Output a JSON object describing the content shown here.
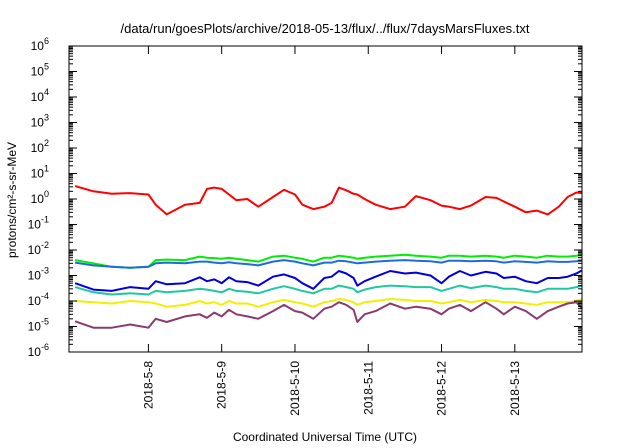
{
  "chart_data": {
    "type": "line",
    "title": "/data/run/goesPlots/archive/2018-05-13/flux/../flux/7daysMarsFluxes.txt",
    "xlabel": "Coordinated Universal Time (UTC)",
    "ylabel": "protons/cm²-s-sr-MeV",
    "yscale": "log",
    "ylim": [
      1e-06,
      1000000.0
    ],
    "xlim": [
      "2018-05-07 02:00",
      "2018-05-13 23:59"
    ],
    "x_ticks": [
      "2018-5-8",
      "2018-5-9",
      "2018-5-10",
      "2018-5-11",
      "2018-5-12",
      "2018-5-13"
    ],
    "y_ticks": [
      -6,
      -5,
      -4,
      -3,
      -2,
      -1,
      0,
      1,
      2,
      3,
      4,
      5,
      6
    ],
    "grid": false,
    "legend": "none",
    "x_days": [
      0.0,
      0.25,
      0.5,
      0.75,
      1.0,
      1.1,
      1.25,
      1.5,
      1.7,
      1.8,
      1.9,
      2.0,
      2.1,
      2.2,
      2.35,
      2.5,
      2.7,
      2.85,
      3.0,
      3.1,
      3.25,
      3.4,
      3.5,
      3.6,
      3.7,
      3.8,
      3.85,
      3.95,
      4.1,
      4.3,
      4.5,
      4.65,
      4.85,
      5.0,
      5.1,
      5.25,
      5.4,
      5.6,
      5.75,
      5.85,
      6.0,
      6.15,
      6.3,
      6.45,
      6.6,
      6.72,
      6.84,
      6.92
    ],
    "series": [
      {
        "color": "#ff0000",
        "values": [
          3.2,
          2.0,
          1.6,
          1.7,
          1.5,
          0.6,
          0.25,
          0.6,
          0.7,
          2.5,
          2.8,
          2.5,
          1.5,
          0.9,
          1.0,
          0.5,
          1.2,
          2.3,
          1.5,
          0.6,
          0.4,
          0.5,
          0.7,
          2.8,
          2.2,
          1.6,
          1.5,
          1.0,
          0.6,
          0.4,
          0.5,
          1.3,
          0.9,
          0.55,
          0.5,
          0.4,
          0.55,
          1.2,
          1.1,
          0.8,
          0.5,
          0.3,
          0.35,
          0.25,
          0.5,
          1.2,
          1.8,
          1.7
        ]
      },
      {
        "color": "#00ee00",
        "values": [
          0.004,
          0.003,
          0.0022,
          0.002,
          0.0022,
          0.004,
          0.0042,
          0.004,
          0.0055,
          0.005,
          0.0048,
          0.0045,
          0.005,
          0.0045,
          0.004,
          0.0035,
          0.0055,
          0.006,
          0.005,
          0.0045,
          0.0035,
          0.005,
          0.005,
          0.006,
          0.0055,
          0.005,
          0.0045,
          0.005,
          0.0055,
          0.006,
          0.0065,
          0.006,
          0.0055,
          0.005,
          0.006,
          0.006,
          0.0055,
          0.006,
          0.0055,
          0.005,
          0.006,
          0.0055,
          0.005,
          0.006,
          0.0055,
          0.0055,
          0.006,
          0.0065
        ]
      },
      {
        "color": "#1e6be0",
        "values": [
          0.0032,
          0.0025,
          0.0022,
          0.002,
          0.0022,
          0.003,
          0.0032,
          0.003,
          0.0035,
          0.0035,
          0.0032,
          0.003,
          0.0033,
          0.003,
          0.0028,
          0.0025,
          0.0035,
          0.004,
          0.0035,
          0.003,
          0.0025,
          0.0032,
          0.0032,
          0.0038,
          0.0036,
          0.0032,
          0.003,
          0.0032,
          0.0035,
          0.0038,
          0.004,
          0.0038,
          0.0036,
          0.0032,
          0.0038,
          0.0038,
          0.0036,
          0.0038,
          0.0036,
          0.0032,
          0.0036,
          0.0034,
          0.0032,
          0.0036,
          0.0034,
          0.0034,
          0.0036,
          0.0038
        ]
      },
      {
        "color": "#0000dd",
        "values": [
          0.0005,
          0.00028,
          0.00025,
          0.00035,
          0.0003,
          0.0006,
          0.00045,
          0.0005,
          0.00085,
          0.0006,
          0.0007,
          0.0005,
          0.00085,
          0.0006,
          0.00055,
          0.0004,
          0.0009,
          0.0011,
          0.0008,
          0.0005,
          0.0003,
          0.0008,
          0.0009,
          0.0015,
          0.0012,
          0.0008,
          0.0004,
          0.0006,
          0.0009,
          0.0015,
          0.0012,
          0.0013,
          0.001,
          0.0005,
          0.0009,
          0.0015,
          0.001,
          0.0014,
          0.0012,
          0.0008,
          0.0009,
          0.0006,
          0.0005,
          0.0008,
          0.0008,
          0.0009,
          0.0012,
          0.0016
        ]
      },
      {
        "color": "#20c8a0",
        "values": [
          0.00035,
          0.00022,
          0.00018,
          0.0002,
          0.00018,
          0.00025,
          0.00022,
          0.00025,
          0.0003,
          0.00028,
          0.00025,
          0.00022,
          0.0003,
          0.00025,
          0.00023,
          0.0002,
          0.0003,
          0.00038,
          0.0003,
          0.00025,
          0.0002,
          0.0003,
          0.0003,
          0.0004,
          0.00035,
          0.0003,
          0.00022,
          0.00028,
          0.00035,
          0.0004,
          0.00038,
          0.00035,
          0.00035,
          0.00025,
          0.0003,
          0.0004,
          0.00032,
          0.0004,
          0.00035,
          0.0003,
          0.0003,
          0.00025,
          0.00022,
          0.0003,
          0.0003,
          0.0003,
          0.00035,
          0.0004
        ]
      },
      {
        "color": "#f0f000",
        "values": [
          0.0001,
          9e-05,
          8e-05,
          0.0001,
          9e-05,
          8e-05,
          6e-05,
          7e-05,
          0.0001,
          8e-05,
          9e-05,
          7e-05,
          0.0001,
          8e-05,
          8e-05,
          6e-05,
          9e-05,
          0.00011,
          9e-05,
          8e-05,
          6e-05,
          9e-05,
          0.0001,
          0.00012,
          0.00011,
          9e-05,
          7e-05,
          9e-05,
          0.0001,
          0.00012,
          0.00011,
          0.0001,
          0.0001,
          8e-05,
          9e-05,
          0.00011,
          9e-05,
          0.00011,
          0.0001,
          9e-05,
          9e-05,
          8e-05,
          7e-05,
          9e-05,
          9e-05,
          9e-05,
          0.0001,
          0.00012
        ]
      },
      {
        "color": "#8b3a6e",
        "values": [
          1.6e-05,
          9e-06,
          9e-06,
          1.2e-05,
          9e-06,
          2e-05,
          1.5e-05,
          2.5e-05,
          3e-05,
          2.2e-05,
          3.5e-05,
          2.5e-05,
          4.5e-05,
          3e-05,
          2.5e-05,
          2e-05,
          4e-05,
          7e-05,
          4e-05,
          3.5e-05,
          2e-05,
          5e-05,
          6e-05,
          9e-05,
          7e-05,
          4.5e-05,
          1.5e-05,
          3e-05,
          4e-05,
          8e-05,
          5e-05,
          6e-05,
          5e-05,
          3e-05,
          5e-05,
          7e-05,
          4e-05,
          9e-05,
          5e-05,
          3e-05,
          6e-05,
          4e-05,
          2e-05,
          4e-05,
          6e-05,
          8e-05,
          9e-05,
          5e-05
        ]
      }
    ]
  }
}
